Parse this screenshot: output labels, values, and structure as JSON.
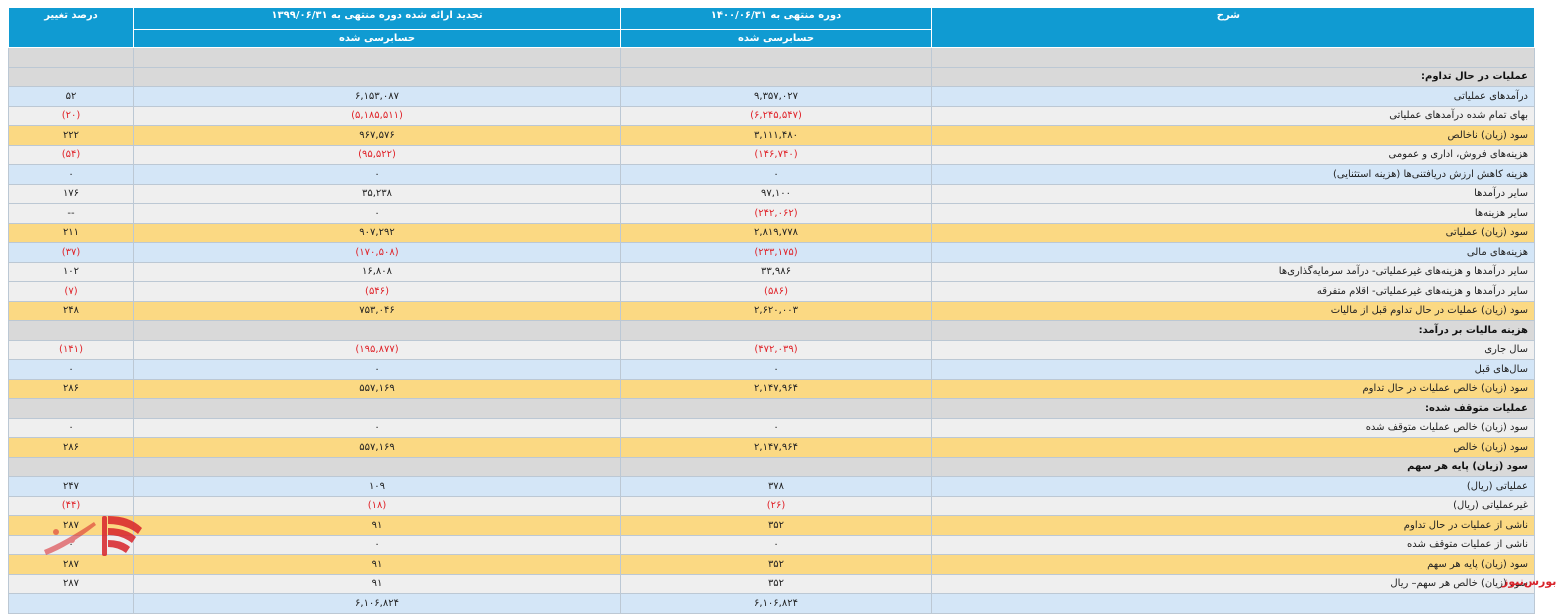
{
  "headers": {
    "description": "شرح",
    "current_period": "دوره منتهی به ۱۴۰۰/۰۶/۳۱",
    "prior_period": "تجدید ارائه شده دوره منتهی به ۱۳۹۹/۰۶/۳۱",
    "change_pct": "درصد تغییر",
    "audited": "حسابرسی شده"
  },
  "rows": [
    {
      "style": "section",
      "label": "",
      "cur": "",
      "prev": "",
      "chg": ""
    },
    {
      "style": "section",
      "label": "عملیات در حال تداوم:",
      "cur": "",
      "prev": "",
      "chg": ""
    },
    {
      "style": "blue",
      "label": "درآمدهای عملیاتی",
      "cur": "۹,۳۵۷,۰۲۷",
      "prev": "۶,۱۵۳,۰۸۷",
      "chg": "۵۲"
    },
    {
      "style": "grey",
      "label": "بهای تمام شده درآمدهای عملیاتی",
      "cur": "(۶,۲۴۵,۵۴۷)",
      "prev": "(۵,۱۸۵,۵۱۱)",
      "chg": "(۲۰)"
    },
    {
      "style": "gold",
      "label": "سود (زیان) ناخالص",
      "cur": "۳,۱۱۱,۴۸۰",
      "prev": "۹۶۷,۵۷۶",
      "chg": "۲۲۲"
    },
    {
      "style": "grey",
      "label": "هزینه‌های فروش، اداری و عمومی",
      "cur": "(۱۴۶,۷۴۰)",
      "prev": "(۹۵,۵۲۲)",
      "chg": "(۵۴)"
    },
    {
      "style": "blue",
      "label": "هزینه کاهش ارزش دریافتنی‌ها (هزینه استثنایی)",
      "cur": "۰",
      "prev": "۰",
      "chg": "۰"
    },
    {
      "style": "grey",
      "label": "سایر درآمدها",
      "cur": "۹۷,۱۰۰",
      "prev": "۳۵,۲۳۸",
      "chg": "۱۷۶"
    },
    {
      "style": "grey",
      "label": "سایر هزینه‌ها",
      "cur": "(۲۴۲,۰۶۲)",
      "prev": "۰",
      "chg": "--"
    },
    {
      "style": "gold",
      "label": "سود (زیان) عملیاتی",
      "cur": "۲,۸۱۹,۷۷۸",
      "prev": "۹۰۷,۲۹۲",
      "chg": "۲۱۱"
    },
    {
      "style": "blue",
      "label": "هزینه‌های مالی",
      "cur": "(۲۳۳,۱۷۵)",
      "prev": "(۱۷۰,۵۰۸)",
      "chg": "(۳۷)"
    },
    {
      "style": "grey",
      "label": "سایر درآمدها و هزینه‌های غیرعملیاتی- درآمد سرمایه‌گذاری‌ها",
      "cur": "۳۳,۹۸۶",
      "prev": "۱۶,۸۰۸",
      "chg": "۱۰۲"
    },
    {
      "style": "grey",
      "label": "سایر درآمدها و هزینه‌های غیرعملیاتی- اقلام متفرقه",
      "cur": "(۵۸۶)",
      "prev": "(۵۴۶)",
      "chg": "(۷)"
    },
    {
      "style": "gold",
      "label": "سود (زیان) عملیات در حال تداوم قبل از مالیات",
      "cur": "۲,۶۲۰,۰۰۳",
      "prev": "۷۵۳,۰۴۶",
      "chg": "۲۴۸"
    },
    {
      "style": "section",
      "label": "هزینه مالیات بر درآمد:",
      "cur": "",
      "prev": "",
      "chg": ""
    },
    {
      "style": "grey",
      "label": "سال جاری",
      "cur": "(۴۷۲,۰۳۹)",
      "prev": "(۱۹۵,۸۷۷)",
      "chg": "(۱۴۱)"
    },
    {
      "style": "blue",
      "label": "سال‌های قبل",
      "cur": "۰",
      "prev": "۰",
      "chg": "۰"
    },
    {
      "style": "gold",
      "label": "سود (زیان) خالص عملیات در حال تداوم",
      "cur": "۲,۱۴۷,۹۶۴",
      "prev": "۵۵۷,۱۶۹",
      "chg": "۲۸۶"
    },
    {
      "style": "section",
      "label": "عملیات متوقف شده:",
      "cur": "",
      "prev": "",
      "chg": ""
    },
    {
      "style": "grey",
      "label": "سود (زیان) خالص عملیات متوقف شده",
      "cur": "۰",
      "prev": "۰",
      "chg": "۰"
    },
    {
      "style": "gold",
      "label": "سود (زیان) خالص",
      "cur": "۲,۱۴۷,۹۶۴",
      "prev": "۵۵۷,۱۶۹",
      "chg": "۲۸۶"
    },
    {
      "style": "section",
      "label": "سود (زیان) پایه هر سهم",
      "cur": "",
      "prev": "",
      "chg": ""
    },
    {
      "style": "blue",
      "label": "عملیاتی (ریال)",
      "cur": "۳۷۸",
      "prev": "۱۰۹",
      "chg": "۲۴۷"
    },
    {
      "style": "grey",
      "label": "غیرعملیاتی (ریال)",
      "cur": "(۲۶)",
      "prev": "(۱۸)",
      "chg": "(۴۴)"
    },
    {
      "style": "gold",
      "label": "ناشی از عملیات در حال تداوم",
      "cur": "۳۵۲",
      "prev": "۹۱",
      "chg": "۲۸۷"
    },
    {
      "style": "grey",
      "label": "ناشی از عملیات متوقف شده",
      "cur": "۰",
      "prev": "۰",
      "chg": "۰"
    },
    {
      "style": "gold",
      "label": "سود (زیان) پایه هر سهم",
      "cur": "۳۵۲",
      "prev": "۹۱",
      "chg": "۲۸۷"
    },
    {
      "style": "grey",
      "label": "سود (زیان) خالص هر سهم– ریال",
      "cur": "۳۵۲",
      "prev": "۹۱",
      "chg": "۲۸۷"
    },
    {
      "style": "blue",
      "label": "",
      "cur": "۶,۱۰۶,۸۲۴",
      "prev": "۶,۱۰۶,۸۲۴",
      "chg": ""
    }
  ],
  "watermark": "بورس‌نیوز",
  "logo_text": "بورس نیوز",
  "brand_color": "#d8232a",
  "header_color": "#109bd2"
}
